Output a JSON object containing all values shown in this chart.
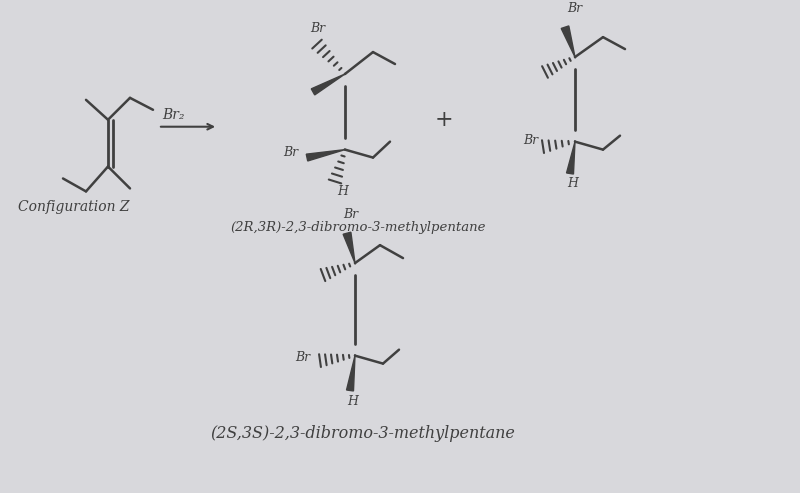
{
  "paper_color": "#d8d8dc",
  "text_color": "#404040",
  "line_color": "#404040",
  "figsize": [
    8.0,
    4.93
  ],
  "dpi": 100,
  "alkene_label": "Configuration Z",
  "reagent": "Br₂",
  "product1_name": "(2R,3R)-2,3-dibromo-3-methylpentane",
  "bottom_product_name": "(2S,3S)-2,3-dibromo-3-methylpentane",
  "plus_sign": "+"
}
